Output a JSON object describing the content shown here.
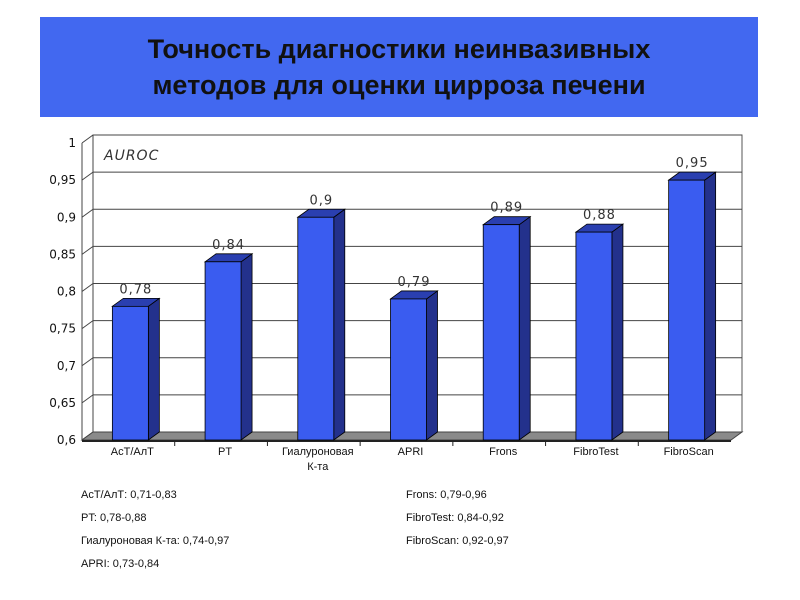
{
  "title": {
    "line1": "Точность диагностики неинвазивных",
    "line2": "методов для оценки цирроза печени"
  },
  "colors": {
    "banner": "#4268f0",
    "bar_front": "#3a5cf0",
    "bar_side": "#23318c",
    "bar_top": "#2a3fb0"
  },
  "chart_data": {
    "type": "bar",
    "title": "AUROC",
    "categories": [
      "АсТ/АлТ",
      "PT",
      "Гиалуроновая К-та",
      "APRI",
      "Frons",
      "FibroTest",
      "FibroScan"
    ],
    "category_lines": [
      [
        "АсТ/АлТ"
      ],
      [
        "PT"
      ],
      [
        "Гиалуроновая",
        "К-та"
      ],
      [
        "APRI"
      ],
      [
        "Frons"
      ],
      [
        "FibroTest"
      ],
      [
        "FibroScan"
      ]
    ],
    "values": [
      0.78,
      0.84,
      0.9,
      0.79,
      0.89,
      0.88,
      0.95
    ],
    "value_labels": [
      "0,78",
      "0,84",
      "0,9",
      "0,79",
      "0,89",
      "0,88",
      "0,95"
    ],
    "ylim": [
      0.6,
      1.0
    ],
    "yticks": [
      0.6,
      0.65,
      0.7,
      0.75,
      0.8,
      0.85,
      0.9,
      0.95,
      1.0
    ],
    "ytick_labels": [
      "0,6",
      "0,65",
      "0,7",
      "0,75",
      "0,8",
      "0,85",
      "0,9",
      "0,95",
      "1"
    ],
    "grid": true,
    "xlabel": "",
    "ylabel": ""
  },
  "notes": {
    "left": [
      "АсТ/АлТ: 0,71-0,83",
      "PT: 0,78-0,88",
      "Гиалуроновая К-та: 0,74-0,97",
      "APRI: 0,73-0,84"
    ],
    "right": [
      "Frons: 0,79-0,96",
      "FibroTest: 0,84-0,92",
      "FibroScan: 0,92-0,97"
    ]
  }
}
